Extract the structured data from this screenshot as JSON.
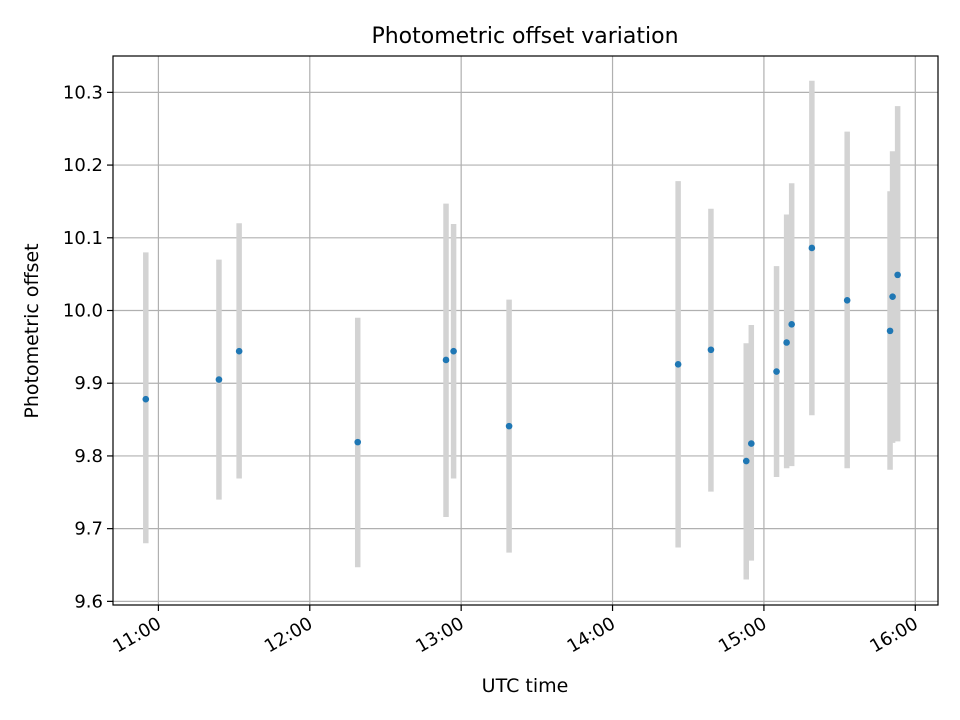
{
  "chart_data": {
    "type": "scatter",
    "title": "Photometric offset variation",
    "xlabel": "UTC time",
    "ylabel": "Photometric offset",
    "x_ticks": [
      "11:00",
      "12:00",
      "13:00",
      "14:00",
      "15:00",
      "16:00"
    ],
    "y_ticks": [
      "9.6",
      "9.7",
      "9.8",
      "9.9",
      "10.0",
      "10.1",
      "10.2",
      "10.3"
    ],
    "xlim": [
      "10:42",
      "16:09"
    ],
    "ylim": [
      9.595,
      10.35
    ],
    "grid": true,
    "series": [
      {
        "marker_color": "#1f77b4",
        "errorbar_color": "#d3d3d3",
        "points": [
          {
            "x": "10:55",
            "y": 9.878,
            "ylow": 9.68,
            "yhigh": 10.08
          },
          {
            "x": "11:24",
            "y": 9.905,
            "ylow": 9.74,
            "yhigh": 10.07
          },
          {
            "x": "11:32",
            "y": 9.944,
            "ylow": 9.769,
            "yhigh": 10.12
          },
          {
            "x": "12:19",
            "y": 9.819,
            "ylow": 9.647,
            "yhigh": 9.99
          },
          {
            "x": "12:54",
            "y": 9.932,
            "ylow": 9.716,
            "yhigh": 10.147
          },
          {
            "x": "12:57",
            "y": 9.944,
            "ylow": 9.769,
            "yhigh": 10.119
          },
          {
            "x": "13:19",
            "y": 9.841,
            "ylow": 9.667,
            "yhigh": 10.015
          },
          {
            "x": "14:26",
            "y": 9.926,
            "ylow": 9.674,
            "yhigh": 10.178
          },
          {
            "x": "14:39",
            "y": 9.946,
            "ylow": 9.751,
            "yhigh": 10.14
          },
          {
            "x": "14:53",
            "y": 9.793,
            "ylow": 9.63,
            "yhigh": 9.955
          },
          {
            "x": "14:55",
            "y": 9.817,
            "ylow": 9.656,
            "yhigh": 9.98
          },
          {
            "x": "15:05",
            "y": 9.916,
            "ylow": 9.771,
            "yhigh": 10.061
          },
          {
            "x": "15:09",
            "y": 9.956,
            "ylow": 9.783,
            "yhigh": 10.132
          },
          {
            "x": "15:11",
            "y": 9.981,
            "ylow": 9.786,
            "yhigh": 10.175
          },
          {
            "x": "15:19",
            "y": 10.086,
            "ylow": 9.856,
            "yhigh": 10.316
          },
          {
            "x": "15:33",
            "y": 10.014,
            "ylow": 9.783,
            "yhigh": 10.246
          },
          {
            "x": "15:50",
            "y": 9.972,
            "ylow": 9.781,
            "yhigh": 10.164
          },
          {
            "x": "15:51",
            "y": 10.019,
            "ylow": 9.818,
            "yhigh": 10.219
          },
          {
            "x": "15:53",
            "y": 10.049,
            "ylow": 9.82,
            "yhigh": 10.281
          }
        ]
      }
    ]
  }
}
